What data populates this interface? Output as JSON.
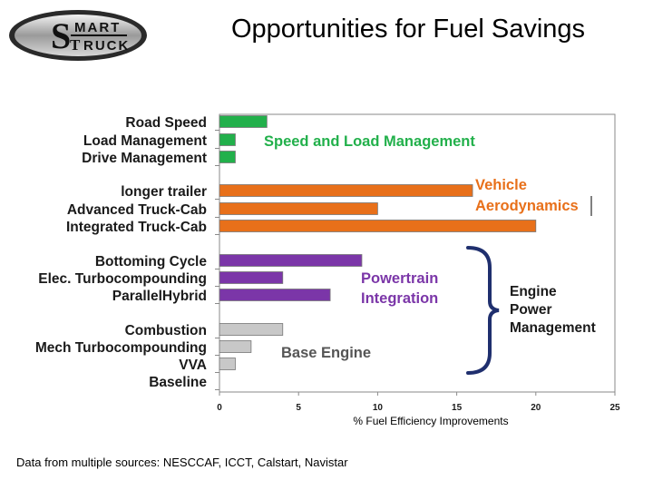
{
  "slide": {
    "title": "Opportunities for Fuel Savings",
    "logo": {
      "text_top": "MART",
      "text_bottom": "RUCK",
      "initial_s": "S",
      "initial_t": "T"
    },
    "source_note": "Data from multiple sources:  NESCCAF, ICCT, Calstart, Navistar"
  },
  "chart_data": {
    "type": "bar",
    "orientation": "horizontal",
    "title": "",
    "xlabel": "% Fuel Efficiency Improvements",
    "ylabel": "",
    "xlim": [
      0,
      25
    ],
    "xticks": [
      0,
      5,
      10,
      15,
      20,
      25
    ],
    "grid": false,
    "groups": [
      {
        "name": "Speed and Load Management",
        "color": "#22b04b",
        "items": [
          {
            "label": "Road Speed",
            "value": 3
          },
          {
            "label": "Load Management",
            "value": 1
          },
          {
            "label": "Drive Management",
            "value": 1
          }
        ]
      },
      {
        "name": "Vehicle Aerodynamics",
        "line1": "Vehicle",
        "line2": "Aerodynamics",
        "color": "#e8701a",
        "items": [
          {
            "label": "longer trailer",
            "value": 16
          },
          {
            "label": "Advanced Truck-Cab",
            "value": 10
          },
          {
            "label": "Integrated Truck-Cab",
            "value": 20
          }
        ]
      },
      {
        "name": "Powertrain Integration",
        "line1": "Powertrain",
        "line2": "Integration",
        "color": "#7b36a8",
        "items": [
          {
            "label": "Bottoming Cycle",
            "value": 9
          },
          {
            "label": "Elec. Turbocompounding",
            "value": 4
          },
          {
            "label": "ParallelHybrid",
            "value": 7
          }
        ]
      },
      {
        "name": "Base Engine",
        "color": "#c8c8c8",
        "items": [
          {
            "label": "Combustion",
            "value": 4
          },
          {
            "label": "Mech Turbocompounding",
            "value": 2
          },
          {
            "label": "VVA",
            "value": 1
          },
          {
            "label": "Baseline",
            "value": 0
          }
        ]
      }
    ],
    "annotation": {
      "line1": "Engine",
      "line2": "Power",
      "line3": "Management",
      "brace_color": "#1f2f6e"
    }
  }
}
